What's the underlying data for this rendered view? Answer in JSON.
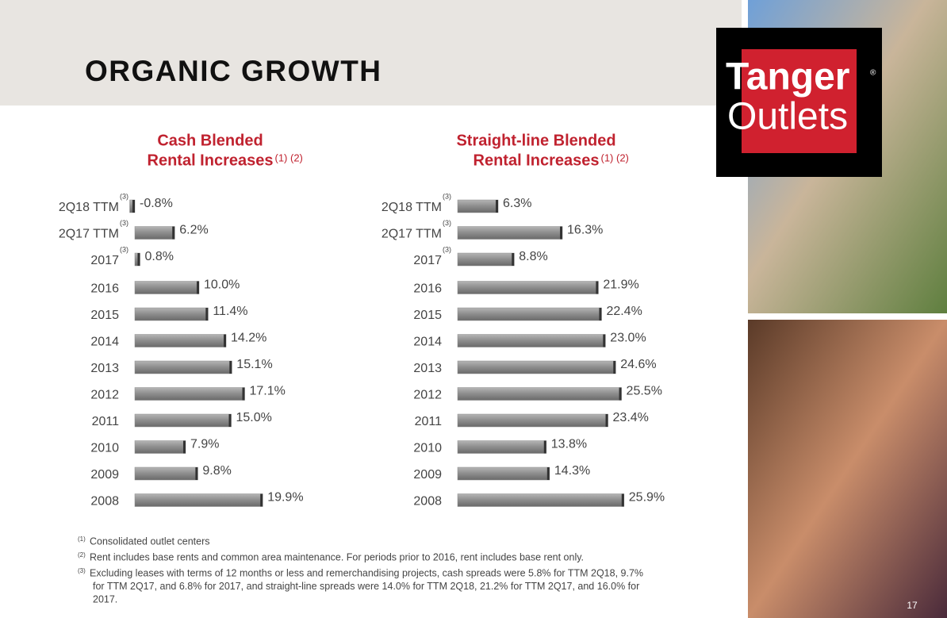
{
  "header": {
    "title": "ORGANIC GROWTH"
  },
  "logo": {
    "line1": "Tanger",
    "mark": "®",
    "line2": "Outlets"
  },
  "chart_data": [
    {
      "type": "bar",
      "orientation": "horizontal",
      "title_lines": [
        "Cash Blended",
        "Rental Increases"
      ],
      "title_note": "(1) (2)",
      "categories": [
        "2Q18 TTM",
        "2Q17 TTM",
        "2017",
        "2016",
        "2015",
        "2014",
        "2013",
        "2012",
        "2011",
        "2010",
        "2009",
        "2008"
      ],
      "category_notes": [
        "(3)",
        "(3)",
        "(3)",
        null,
        null,
        null,
        null,
        null,
        null,
        null,
        null,
        null
      ],
      "values": [
        -0.8,
        6.2,
        0.8,
        10.0,
        11.4,
        14.2,
        15.1,
        17.1,
        15.0,
        7.9,
        9.8,
        19.9
      ],
      "value_labels": [
        "-0.8%",
        "6.2%",
        "0.8%",
        "10.0%",
        "11.4%",
        "14.2%",
        "15.1%",
        "17.1%",
        "15.0%",
        "7.9%",
        "9.8%",
        "19.9%"
      ],
      "color": "#8c8c8c"
    },
    {
      "type": "bar",
      "orientation": "horizontal",
      "title_lines": [
        "Straight-line Blended",
        "Rental Increases"
      ],
      "title_note": "(1) (2)",
      "categories": [
        "2Q18 TTM",
        "2Q17 TTM",
        "2017",
        "2016",
        "2015",
        "2014",
        "2013",
        "2012",
        "2011",
        "2010",
        "2009",
        "2008"
      ],
      "category_notes": [
        "(3)",
        "(3)",
        "(3)",
        null,
        null,
        null,
        null,
        null,
        null,
        null,
        null,
        null
      ],
      "values": [
        6.3,
        16.3,
        8.8,
        21.9,
        22.4,
        23.0,
        24.6,
        25.5,
        23.4,
        13.8,
        14.3,
        25.9
      ],
      "value_labels": [
        "6.3%",
        "16.3%",
        "8.8%",
        "21.9%",
        "22.4%",
        "23.0%",
        "24.6%",
        "25.5%",
        "23.4%",
        "13.8%",
        "14.3%",
        "25.9%"
      ],
      "color": "#8c8c8c"
    }
  ],
  "footnotes": [
    {
      "marker": "(1)",
      "lines": [
        "Consolidated outlet centers"
      ]
    },
    {
      "marker": "(2)",
      "lines": [
        "Rent includes base rents and common area maintenance. For periods prior to 2016, rent includes base rent only."
      ]
    },
    {
      "marker": "(3)",
      "lines": [
        "Excluding leases with terms of 12 months or less and remerchandising projects, cash spreads were 5.8% for TTM 2Q18, 9.7%",
        "for TTM 2Q17, and 6.8% for 2017, and straight-line spreads were 14.0% for TTM 2Q18, 21.2% for TTM 2Q17, and 16.0% for",
        "2017."
      ]
    }
  ],
  "page_number": "17"
}
